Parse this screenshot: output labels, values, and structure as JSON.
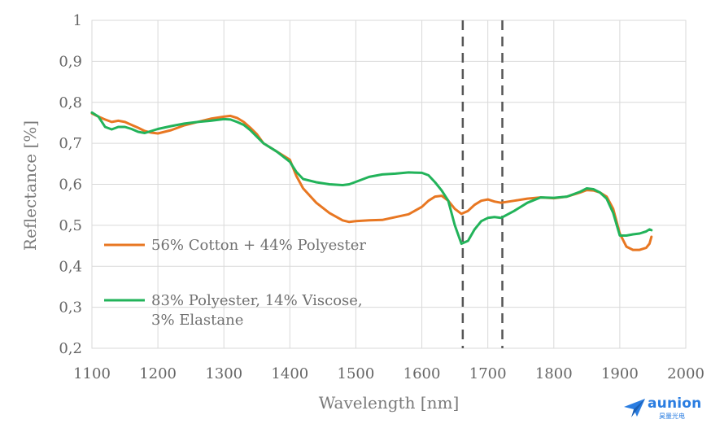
{
  "chart_data": {
    "type": "line",
    "title": "",
    "xlabel": "Wavelength [nm]",
    "ylabel": "Reflectance [%]",
    "xlim": [
      1100,
      2000
    ],
    "ylim": [
      0.2,
      1.0
    ],
    "xticks": [
      "1100",
      "1200",
      "1300",
      "1400",
      "1500",
      "1600",
      "1700",
      "1800",
      "1900",
      "2000"
    ],
    "yticks": [
      "0,2",
      "0,3",
      "0,4",
      "0,5",
      "0,6",
      "0,7",
      "0,8",
      "0,9",
      "1"
    ],
    "grid": true,
    "legend_position": "lower-left",
    "vertical_markers": [
      1662,
      1722
    ],
    "series": [
      {
        "name": "56% Cotton + 44% Polyester",
        "color": "#e87722",
        "x": [
          1100,
          1110,
          1120,
          1130,
          1140,
          1150,
          1160,
          1170,
          1180,
          1190,
          1200,
          1220,
          1240,
          1260,
          1280,
          1300,
          1310,
          1320,
          1330,
          1340,
          1350,
          1360,
          1380,
          1400,
          1410,
          1420,
          1440,
          1460,
          1480,
          1490,
          1500,
          1520,
          1540,
          1560,
          1580,
          1600,
          1610,
          1620,
          1630,
          1640,
          1650,
          1660,
          1670,
          1680,
          1690,
          1700,
          1710,
          1720,
          1740,
          1760,
          1780,
          1800,
          1820,
          1840,
          1850,
          1860,
          1870,
          1880,
          1890,
          1900,
          1910,
          1920,
          1930,
          1940,
          1945,
          1948
        ],
        "y": [
          0.773,
          0.765,
          0.758,
          0.752,
          0.755,
          0.752,
          0.745,
          0.738,
          0.73,
          0.726,
          0.724,
          0.732,
          0.744,
          0.752,
          0.76,
          0.765,
          0.767,
          0.762,
          0.752,
          0.738,
          0.722,
          0.7,
          0.68,
          0.66,
          0.62,
          0.59,
          0.555,
          0.53,
          0.512,
          0.508,
          0.51,
          0.512,
          0.513,
          0.52,
          0.527,
          0.545,
          0.56,
          0.57,
          0.572,
          0.56,
          0.54,
          0.528,
          0.535,
          0.55,
          0.56,
          0.563,
          0.558,
          0.555,
          0.56,
          0.565,
          0.568,
          0.566,
          0.57,
          0.58,
          0.586,
          0.585,
          0.58,
          0.57,
          0.54,
          0.48,
          0.448,
          0.44,
          0.44,
          0.445,
          0.455,
          0.472
        ]
      },
      {
        "name": "83% Polyester, 14% Viscose, 3% Elastane",
        "color": "#22b35a",
        "x": [
          1100,
          1110,
          1120,
          1130,
          1140,
          1150,
          1160,
          1170,
          1180,
          1190,
          1200,
          1220,
          1240,
          1260,
          1280,
          1300,
          1310,
          1320,
          1330,
          1340,
          1350,
          1360,
          1380,
          1400,
          1410,
          1420,
          1440,
          1460,
          1480,
          1490,
          1500,
          1520,
          1540,
          1560,
          1580,
          1600,
          1610,
          1620,
          1630,
          1640,
          1650,
          1660,
          1670,
          1680,
          1690,
          1700,
          1710,
          1720,
          1740,
          1760,
          1780,
          1800,
          1820,
          1840,
          1850,
          1860,
          1870,
          1880,
          1890,
          1900,
          1910,
          1920,
          1930,
          1940,
          1945,
          1948
        ],
        "y": [
          0.775,
          0.765,
          0.74,
          0.734,
          0.74,
          0.74,
          0.735,
          0.728,
          0.725,
          0.73,
          0.735,
          0.742,
          0.748,
          0.752,
          0.755,
          0.759,
          0.758,
          0.752,
          0.745,
          0.732,
          0.716,
          0.7,
          0.68,
          0.655,
          0.63,
          0.613,
          0.605,
          0.6,
          0.598,
          0.6,
          0.606,
          0.618,
          0.624,
          0.626,
          0.629,
          0.628,
          0.622,
          0.605,
          0.585,
          0.56,
          0.5,
          0.455,
          0.462,
          0.49,
          0.51,
          0.518,
          0.52,
          0.518,
          0.535,
          0.555,
          0.568,
          0.567,
          0.57,
          0.582,
          0.59,
          0.588,
          0.58,
          0.565,
          0.53,
          0.475,
          0.475,
          0.478,
          0.48,
          0.485,
          0.49,
          0.488
        ]
      }
    ]
  },
  "logo": {
    "word": "aunion",
    "sub": "昊量光电",
    "color": "#2a7de1"
  }
}
